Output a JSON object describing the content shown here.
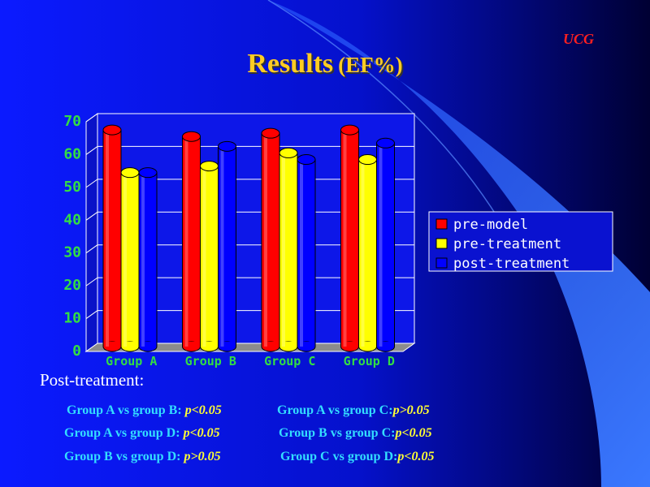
{
  "slide": {
    "tag": "UCG",
    "title_main": "Results",
    "title_sub": "(EF%)",
    "post_label": "Post-treatment:",
    "comparisons": [
      {
        "text": "Group A vs group B: ",
        "p": "p<0.05"
      },
      {
        "text": "Group A vs group C:",
        "p": "p>0.05"
      },
      {
        "text": "Group A vs group D: ",
        "p": "p<0.05"
      },
      {
        "text": "Group B vs group C:",
        "p": "p<0.05"
      },
      {
        "text": "Group B vs group D: ",
        "p": "p>0.05"
      },
      {
        "text": "Group C vs group D:",
        "p": "p<0.05"
      }
    ]
  },
  "chart_data": {
    "type": "bar",
    "categories": [
      "Group A",
      "Group B",
      "Group C",
      "Group D"
    ],
    "series": [
      {
        "name": "pre-model",
        "color": "#ff0000",
        "values": [
          67,
          65,
          66,
          67
        ]
      },
      {
        "name": "pre-treatment",
        "color": "#ffff00",
        "values": [
          54,
          56,
          60,
          58
        ]
      },
      {
        "name": "post-treatment",
        "color": "#0000ff",
        "values": [
          54,
          62,
          58,
          63
        ]
      }
    ],
    "ylim": [
      0,
      70
    ],
    "yticks": [
      0,
      10,
      20,
      30,
      40,
      50,
      60,
      70
    ],
    "legend": "right",
    "grid": true
  }
}
